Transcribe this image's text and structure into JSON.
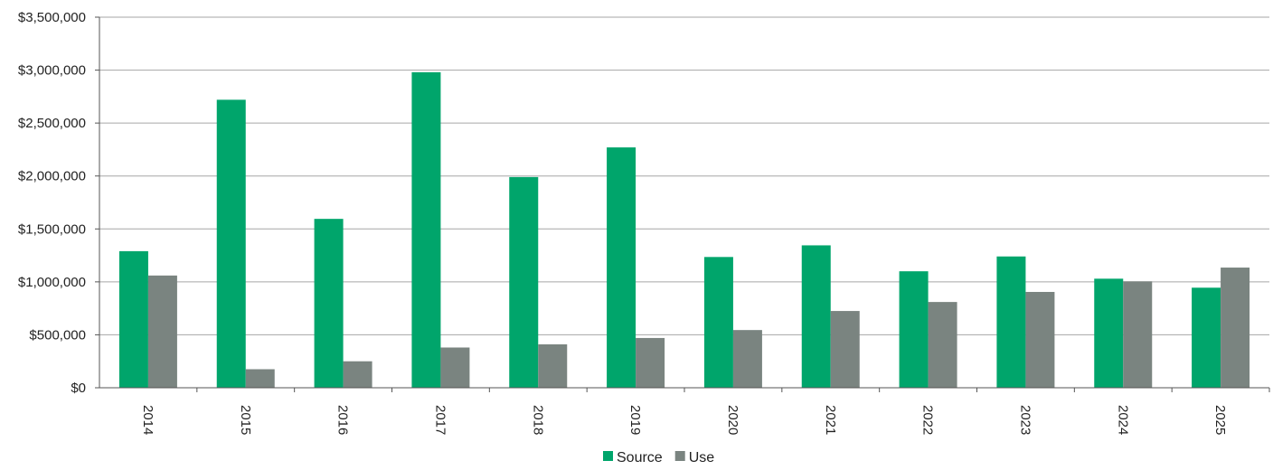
{
  "chart_data": {
    "type": "bar",
    "categories": [
      "2014",
      "2015",
      "2016",
      "2017",
      "2018",
      "2019",
      "2020",
      "2021",
      "2022",
      "2023",
      "2024",
      "2025"
    ],
    "series": [
      {
        "name": "Source",
        "color": "#00a56b",
        "values": [
          1290000,
          2720000,
          1595000,
          2980000,
          1990000,
          2270000,
          1235000,
          1345000,
          1100000,
          1240000,
          1030000,
          945000
        ]
      },
      {
        "name": "Use",
        "color": "#7a8480",
        "values": [
          1060000,
          175000,
          250000,
          380000,
          410000,
          470000,
          545000,
          725000,
          810000,
          905000,
          1005000,
          1135000
        ]
      }
    ],
    "y_ticks": [
      "$0",
      "$500,000",
      "$1,000,000",
      "$1,500,000",
      "$2,000,000",
      "$2,500,000",
      "$3,000,000",
      "$3,500,000"
    ],
    "ylim": [
      0,
      3500000
    ],
    "grid": true,
    "legend_position": "bottom-center",
    "title": "",
    "xlabel": "",
    "ylabel": ""
  }
}
